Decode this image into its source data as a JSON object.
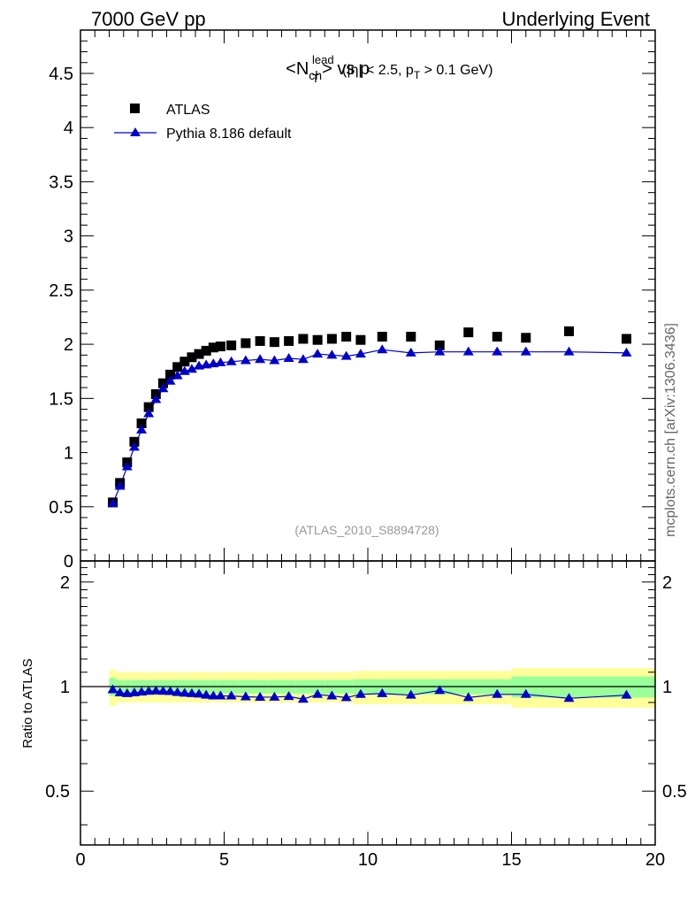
{
  "header": {
    "left": "7000 GeV pp",
    "right": "Underlying Event"
  },
  "watermark": "mcplots.cern.ch [arXiv:1306.3436]",
  "analysis_id": "(ATLAS_2010_S8894728)",
  "ratio_ylabel": "Ratio to ATLAS",
  "colors": {
    "data": "#000000",
    "mc": "#0000cc",
    "band_inner": "#99ff99",
    "band_outer": "#ffff99"
  },
  "chart_data": {
    "type": "scatter",
    "title": {
      "main": "<N",
      "main_sub": "ch",
      "mid": "> vs p",
      "sup": "lead",
      "sub": "T",
      "tail": "(|η| < 2.5, p",
      "tail_sub": "T",
      "tail_end": " > 0.1 GeV)"
    },
    "xlim": [
      0,
      20
    ],
    "ylim": [
      0,
      4.9
    ],
    "ratio_ylim": [
      0.35,
      2.3
    ],
    "x_ticks": [
      0,
      5,
      10,
      15,
      20
    ],
    "y_ticks": [
      0,
      0.5,
      1,
      1.5,
      2,
      2.5,
      3,
      3.5,
      4,
      4.5
    ],
    "y_tick_labels": [
      "0",
      "0.5",
      "1",
      "1.5",
      "2",
      "2.5",
      "3",
      "3.5",
      "4",
      "4.5"
    ],
    "ratio_ticks": [
      0.5,
      1,
      2
    ],
    "ratio_tick_labels": [
      "0.5",
      "1",
      "2"
    ],
    "x_tick_labels": [
      "0",
      "5",
      "10",
      "15",
      "20"
    ],
    "legend": [
      {
        "label": "ATLAS",
        "marker": "square"
      },
      {
        "label": "Pythia 8.186 default",
        "marker": "triangle"
      }
    ],
    "series": [
      {
        "name": "ATLAS",
        "x": [
          1.125,
          1.375,
          1.625,
          1.875,
          2.125,
          2.375,
          2.625,
          2.875,
          3.125,
          3.375,
          3.625,
          3.875,
          4.125,
          4.375,
          4.625,
          4.875,
          5.25,
          5.75,
          6.25,
          6.75,
          7.25,
          7.75,
          8.25,
          8.75,
          9.25,
          9.75,
          10.5,
          11.5,
          12.5,
          13.5,
          14.5,
          15.5,
          17.0,
          19.0
        ],
        "y": [
          0.54,
          0.72,
          0.91,
          1.1,
          1.27,
          1.42,
          1.54,
          1.64,
          1.72,
          1.79,
          1.84,
          1.88,
          1.91,
          1.94,
          1.97,
          1.98,
          1.99,
          2.01,
          2.03,
          2.02,
          2.03,
          2.05,
          2.04,
          2.05,
          2.07,
          2.04,
          2.07,
          2.07,
          1.99,
          2.11,
          2.07,
          2.06,
          2.12,
          2.05
        ]
      },
      {
        "name": "Pythia 8.186 default",
        "x": [
          1.125,
          1.375,
          1.625,
          1.875,
          2.125,
          2.375,
          2.625,
          2.875,
          3.125,
          3.375,
          3.625,
          3.875,
          4.125,
          4.375,
          4.625,
          4.875,
          5.25,
          5.75,
          6.25,
          6.75,
          7.25,
          7.75,
          8.25,
          8.75,
          9.25,
          9.75,
          10.5,
          11.5,
          12.5,
          13.5,
          14.5,
          15.5,
          17.0,
          19.0
        ],
        "y": [
          0.53,
          0.69,
          0.87,
          1.05,
          1.21,
          1.36,
          1.49,
          1.59,
          1.66,
          1.71,
          1.75,
          1.77,
          1.8,
          1.81,
          1.82,
          1.83,
          1.84,
          1.85,
          1.86,
          1.85,
          1.87,
          1.86,
          1.91,
          1.9,
          1.89,
          1.91,
          1.95,
          1.92,
          1.93,
          1.93,
          1.93,
          1.93,
          1.93,
          1.92
        ]
      }
    ],
    "ratio": {
      "x": [
        1.125,
        1.375,
        1.625,
        1.875,
        2.125,
        2.375,
        2.625,
        2.875,
        3.125,
        3.375,
        3.625,
        3.875,
        4.125,
        4.375,
        4.625,
        4.875,
        5.25,
        5.75,
        6.25,
        6.75,
        7.25,
        7.75,
        8.25,
        8.75,
        9.25,
        9.75,
        10.5,
        11.5,
        12.5,
        13.5,
        14.5,
        15.5,
        17.0,
        19.0
      ],
      "y": [
        0.98,
        0.96,
        0.955,
        0.96,
        0.965,
        0.97,
        0.972,
        0.97,
        0.968,
        0.962,
        0.958,
        0.955,
        0.952,
        0.945,
        0.94,
        0.94,
        0.94,
        0.935,
        0.932,
        0.933,
        0.937,
        0.92,
        0.95,
        0.94,
        0.93,
        0.95,
        0.955,
        0.945,
        0.975,
        0.93,
        0.95,
        0.95,
        0.925,
        0.945
      ],
      "band_edges": [
        1.0,
        1.25,
        1.5,
        1.75,
        2.0,
        2.25,
        2.5,
        2.75,
        3.0,
        3.25,
        3.5,
        3.75,
        4.0,
        4.25,
        4.5,
        4.75,
        5.0,
        5.5,
        6.0,
        6.5,
        7.0,
        7.5,
        8.0,
        8.5,
        9.0,
        9.5,
        10.0,
        11.0,
        12.0,
        13.0,
        14.0,
        15.0,
        16.0,
        18.0,
        20.0
      ],
      "band_inner": [
        0.06,
        0.045,
        0.045,
        0.045,
        0.045,
        0.045,
        0.045,
        0.045,
        0.045,
        0.045,
        0.045,
        0.045,
        0.045,
        0.045,
        0.045,
        0.045,
        0.045,
        0.045,
        0.045,
        0.045,
        0.045,
        0.045,
        0.045,
        0.045,
        0.045,
        0.05,
        0.05,
        0.05,
        0.05,
        0.05,
        0.05,
        0.07,
        0.07,
        0.07
      ],
      "band_outer": [
        0.12,
        0.1,
        0.1,
        0.1,
        0.1,
        0.1,
        0.1,
        0.1,
        0.1,
        0.1,
        0.1,
        0.1,
        0.1,
        0.1,
        0.1,
        0.1,
        0.1,
        0.1,
        0.1,
        0.1,
        0.1,
        0.1,
        0.1,
        0.1,
        0.1,
        0.11,
        0.11,
        0.11,
        0.11,
        0.11,
        0.11,
        0.13,
        0.13,
        0.13
      ]
    }
  }
}
